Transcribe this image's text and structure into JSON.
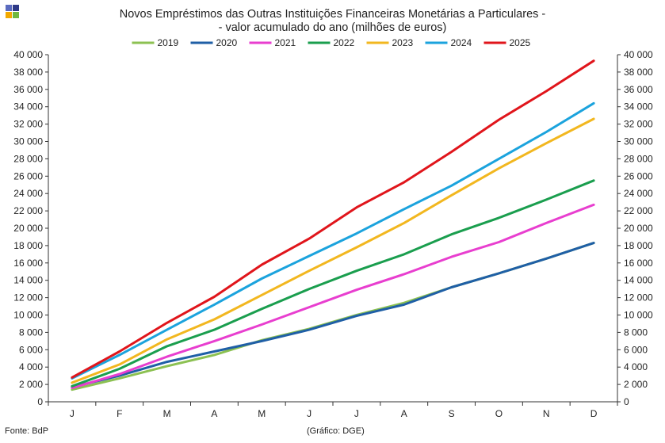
{
  "header": {
    "title_line1": "Novos Empréstimos das Outras Instituições Financeiras Monetárias a Particulares -",
    "title_line2": "- valor acumulado do ano (milhões de euros)",
    "logo_colors": [
      "#5b6bbf",
      "#2e3a87",
      "#f2a900",
      "#6fb83f"
    ]
  },
  "footer": {
    "source": "Fonte: BdP",
    "credit": "(Gráfico: DGE)"
  },
  "chart_data": {
    "type": "line",
    "title": "Novos Empréstimos das Outras Instituições Financeiras Monetárias a Particulares - - valor acumulado do ano (milhões de euros)",
    "categories": [
      "J",
      "F",
      "M",
      "A",
      "M",
      "J",
      "J",
      "A",
      "S",
      "O",
      "N",
      "D"
    ],
    "ylim": [
      0,
      40000
    ],
    "yticks": [
      0,
      2000,
      4000,
      6000,
      8000,
      10000,
      12000,
      14000,
      16000,
      18000,
      20000,
      22000,
      24000,
      26000,
      28000,
      30000,
      32000,
      34000,
      36000,
      38000,
      40000
    ],
    "ytick_labels": [
      "0",
      "2 000",
      "4 000",
      "6 000",
      "8 000",
      "10 000",
      "12 000",
      "14 000",
      "16 000",
      "18 000",
      "20 000",
      "22 000",
      "24 000",
      "26 000",
      "28 000",
      "30 000",
      "32 000",
      "34 000",
      "36 000",
      "38 000",
      "40 000"
    ],
    "grid": false,
    "dual_y_axis": true,
    "legend_position": "top-center",
    "series": [
      {
        "name": "2019",
        "color": "#8cc152",
        "values": [
          1400,
          2700,
          4100,
          5400,
          7100,
          8400,
          10000,
          11400,
          13200,
          14800,
          16500,
          18300
        ]
      },
      {
        "name": "2020",
        "color": "#1f5fa6",
        "values": [
          1700,
          3000,
          4600,
          5800,
          7000,
          8300,
          9900,
          11200,
          13200,
          14800,
          16500,
          18300
        ]
      },
      {
        "name": "2021",
        "color": "#e83ecf",
        "values": [
          1600,
          3200,
          5200,
          7000,
          8900,
          10900,
          12900,
          14700,
          16700,
          18400,
          20600,
          22700
        ]
      },
      {
        "name": "2022",
        "color": "#1a9e4e",
        "values": [
          1800,
          3800,
          6400,
          8300,
          10700,
          13000,
          15100,
          17000,
          19300,
          21200,
          23300,
          25500
        ]
      },
      {
        "name": "2023",
        "color": "#f2b71f",
        "values": [
          2200,
          4300,
          7200,
          9500,
          12300,
          15100,
          17800,
          20600,
          23800,
          26900,
          29800,
          32600
        ]
      },
      {
        "name": "2024",
        "color": "#1ba3dd",
        "values": [
          2700,
          5400,
          8300,
          11200,
          14200,
          16800,
          19400,
          22200,
          24900,
          28000,
          31100,
          34400
        ]
      },
      {
        "name": "2025",
        "color": "#e0151b",
        "values": [
          2800,
          5800,
          9100,
          12100,
          15800,
          18800,
          22400,
          25300,
          28800,
          32500,
          35800,
          39300
        ]
      }
    ]
  }
}
